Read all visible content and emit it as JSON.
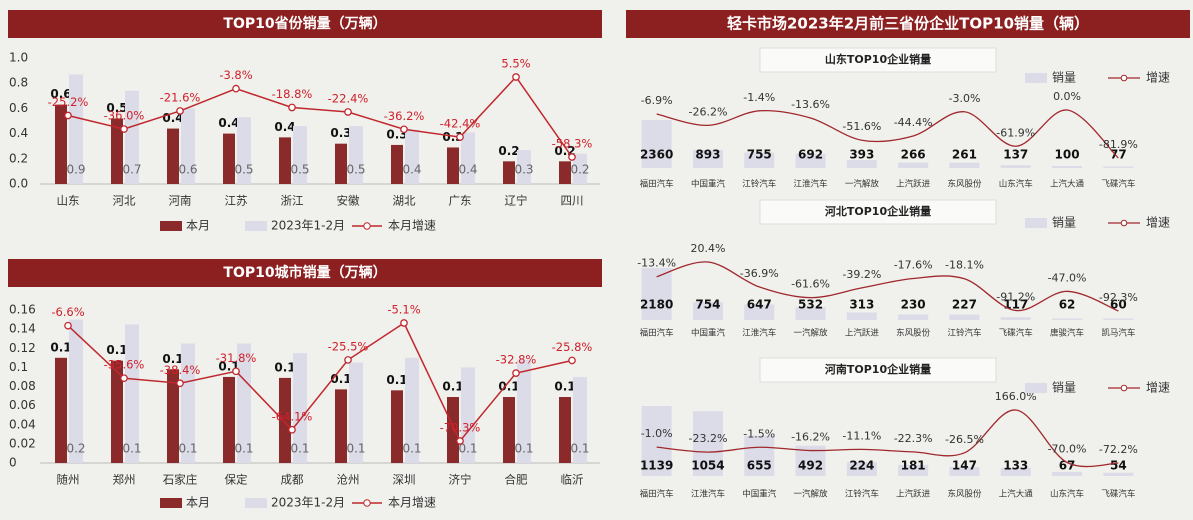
{
  "chart_data": [
    {
      "type": "bar",
      "title": "TOP10省份销量（万辆）",
      "categories": [
        "山东",
        "河北",
        "河南",
        "江苏",
        "浙江",
        "安徽",
        "湖北",
        "广东",
        "辽宁",
        "四川"
      ],
      "series": [
        {
          "name": "本月",
          "color": "#8b2a2a",
          "values": [
            0.63,
            0.52,
            0.44,
            0.4,
            0.37,
            0.32,
            0.31,
            0.29,
            0.18,
            0.18
          ],
          "value_labels": [
            "0.6",
            "0.5",
            "0.4",
            "0.4",
            "0.4",
            "0.3",
            "0.3",
            "0.3",
            "0.2",
            "0.2"
          ]
        },
        {
          "name": "2023年1-2月",
          "color": "#dcdce8",
          "values": [
            0.87,
            0.74,
            0.6,
            0.53,
            0.46,
            0.46,
            0.43,
            0.41,
            0.27,
            0.24
          ],
          "value_labels": [
            "0.9",
            "0.7",
            "0.6",
            "0.5",
            "0.5",
            "0.5",
            "0.4",
            "0.4",
            "0.3",
            "0.2"
          ]
        },
        {
          "name": "本月增速",
          "type": "line",
          "axis": "y2",
          "color": "#c0282d",
          "values": [
            -25.2,
            -36.0,
            -21.6,
            -3.8,
            -18.8,
            -22.4,
            -36.2,
            -42.4,
            5.5,
            -58.3
          ],
          "value_labels": [
            "-25.2%",
            "-36.0%",
            "-21.6%",
            "-3.8%",
            "-18.8%",
            "-22.4%",
            "-36.2%",
            "-42.4%",
            "5.5%",
            "-58.3%"
          ]
        }
      ],
      "ylim": [
        0,
        1
      ],
      "yticks": [
        {
          "value": 0,
          "label": "0.0"
        },
        0.2,
        0.4,
        0.6,
        0.8,
        {
          "value": 1,
          "label": "1.0"
        }
      ]
    },
    {
      "type": "bar",
      "title": "TOP10城市销量（万辆）",
      "categories": [
        "随州",
        "郑州",
        "石家庄",
        "保定",
        "成都",
        "沧州",
        "深圳",
        "济宁",
        "合肥",
        "临沂"
      ],
      "series": [
        {
          "name": "本月",
          "color": "#8b2a2a",
          "values": [
            0.11,
            0.107,
            0.098,
            0.09,
            0.089,
            0.077,
            0.076,
            0.069,
            0.069,
            0.069
          ],
          "value_labels": [
            "0.1",
            "0.1",
            "0.1",
            "0.1",
            "0.1",
            "0.1",
            "0.1",
            "0.1",
            "0.1",
            "0.1"
          ]
        },
        {
          "name": "2023年1-2月",
          "color": "#dcdce8",
          "values": [
            0.15,
            0.145,
            0.125,
            0.125,
            0.115,
            0.105,
            0.11,
            0.1,
            0.108,
            0.09
          ],
          "value_labels": [
            "0.2",
            "0.1",
            "0.1",
            "0.1",
            "0.1",
            "0.1",
            "0.1",
            "0.1",
            "0.1",
            "0.1"
          ]
        },
        {
          "name": "本月增速",
          "type": "line",
          "axis": "y2",
          "color": "#c0282d",
          "values": [
            -6.6,
            -35.6,
            -38.4,
            -31.8,
            -64.1,
            -25.5,
            -5.1,
            -70.3,
            -32.8,
            -25.8
          ],
          "value_labels": [
            "-6.6%",
            "-35.6%",
            "-38.4%",
            "-31.8%",
            "-64.1%",
            "-25.5%",
            "-5.1%",
            "-70.3%",
            "-32.8%",
            "-25.8%"
          ]
        }
      ],
      "ylim": [
        0,
        0.16
      ],
      "yticks": [
        0,
        0.02,
        0.04,
        0.06,
        0.08,
        0.1,
        0.12,
        0.14,
        0.16
      ]
    },
    {
      "type": "bar",
      "title": "山东TOP10企业销量",
      "categories": [
        "福田汽车",
        "中国重汽",
        "江铃汽车",
        "江淮汽车",
        "一汽解放",
        "上汽跃进",
        "东风股份",
        "山东汽车",
        "上汽大通",
        "飞碟汽车"
      ],
      "series": [
        {
          "name": "销量",
          "color": "#dcdce8",
          "values": [
            2360,
            893,
            755,
            692,
            393,
            266,
            261,
            137,
            100,
            77
          ]
        },
        {
          "name": "增速",
          "type": "line",
          "color": "#a0282d",
          "values": [
            -6.9,
            -26.2,
            -1.4,
            -13.6,
            -51.6,
            -44.4,
            -3.0,
            -61.9,
            0.0,
            -81.9
          ],
          "value_labels": [
            "-6.9%",
            "-26.2%",
            "-1.4%",
            "-13.6%",
            "-51.6%",
            "-44.4%",
            "-3.0%",
            "-61.9%",
            "0.0%",
            "-81.9%"
          ]
        }
      ]
    },
    {
      "type": "bar",
      "title": "河北TOP10企业销量",
      "categories": [
        "福田汽车",
        "中国重汽",
        "江淮汽车",
        "一汽解放",
        "上汽跃进",
        "东风股份",
        "江铃汽车",
        "飞碟汽车",
        "唐骏汽车",
        "凯马汽车"
      ],
      "series": [
        {
          "name": "销量",
          "color": "#dcdce8",
          "values": [
            2180,
            754,
            647,
            532,
            313,
            230,
            227,
            117,
            62,
            60
          ]
        },
        {
          "name": "增速",
          "type": "line",
          "color": "#a0282d",
          "values": [
            -13.4,
            20.4,
            -36.9,
            -61.6,
            -39.2,
            -17.6,
            -18.1,
            -91.2,
            -47.0,
            -92.3
          ],
          "value_labels": [
            "-13.4%",
            "20.4%",
            "-36.9%",
            "-61.6%",
            "-39.2%",
            "-17.6%",
            "-18.1%",
            "-91.2%",
            "-47.0%",
            "-92.3%"
          ]
        }
      ]
    },
    {
      "type": "bar",
      "title": "河南TOP10企业销量",
      "categories": [
        "福田汽车",
        "江淮汽车",
        "中国重汽",
        "一汽解放",
        "江铃汽车",
        "上汽跃进",
        "东风股份",
        "上汽大通",
        "山东汽车",
        "飞碟汽车"
      ],
      "series": [
        {
          "name": "销量",
          "color": "#dcdce8",
          "values": [
            1139,
            1054,
            655,
            492,
            224,
            181,
            147,
            133,
            67,
            54
          ]
        },
        {
          "name": "增速",
          "type": "line",
          "color": "#a0282d",
          "values": [
            -1.0,
            -23.2,
            -1.5,
            -16.2,
            -11.1,
            -22.3,
            -26.5,
            166.0,
            -70.0,
            -72.2
          ],
          "value_labels": [
            "-1.0%",
            "-23.2%",
            "-1.5%",
            "-16.2%",
            "-11.1%",
            "-22.3%",
            "-26.5%",
            "166.0%",
            "-70.0%",
            "-72.2%"
          ]
        }
      ]
    }
  ],
  "right_panel": {
    "title": "轻卡市场2023年2月前三省份企业TOP10销量（辆）"
  }
}
